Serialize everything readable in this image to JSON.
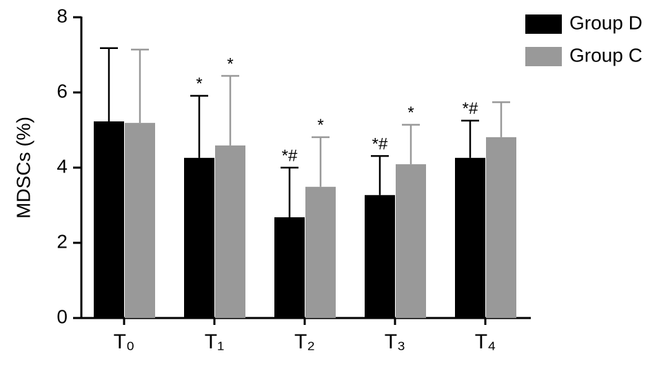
{
  "chart_data": {
    "type": "bar",
    "y_label": "MDSCs (%)",
    "categories": [
      "T₀",
      "T₁",
      "T₂",
      "T₃",
      "T₄"
    ],
    "series": [
      {
        "name": "Group D",
        "color": "#000000",
        "values": [
          5.23,
          4.26,
          2.68,
          3.27,
          4.26
        ],
        "errors": [
          1.95,
          1.65,
          1.32,
          1.04,
          0.99
        ],
        "labels": [
          null,
          "*",
          "*#",
          "*#",
          "*#"
        ]
      },
      {
        "name": "Group C",
        "color": "#999999",
        "values": [
          5.19,
          4.59,
          3.49,
          4.09,
          4.81
        ],
        "errors": [
          1.95,
          1.85,
          1.32,
          1.05,
          0.93
        ],
        "labels": [
          null,
          "*",
          "*",
          "*",
          null
        ]
      }
    ],
    "ylim": [
      0,
      8
    ],
    "yticks": [
      0,
      2,
      4,
      6,
      8
    ],
    "legend": "upper right"
  }
}
